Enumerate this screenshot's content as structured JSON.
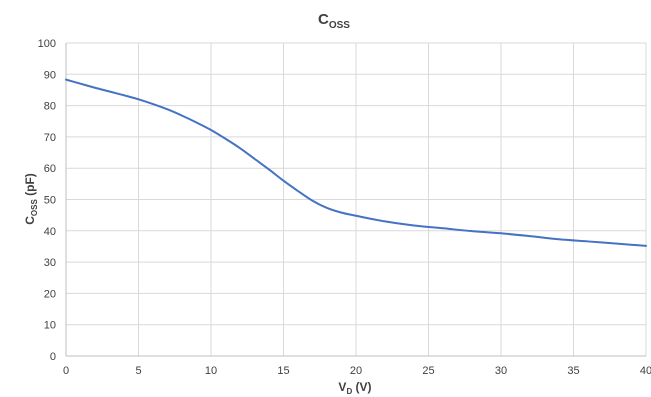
{
  "chart_data": {
    "type": "line",
    "title": {
      "main": "C",
      "sub": "OSS"
    },
    "xlabel": {
      "main": "V",
      "sub": "D",
      "suffix": " (V)"
    },
    "ylabel": {
      "main": "C",
      "sub": "OSS",
      "suffix": " (pF)"
    },
    "xlim": [
      0,
      40
    ],
    "ylim": [
      0,
      100
    ],
    "x_ticks": [
      "0",
      "5",
      "10",
      "15",
      "20",
      "25",
      "30",
      "35",
      "40"
    ],
    "y_ticks": [
      "0",
      "10",
      "20",
      "30",
      "40",
      "50",
      "60",
      "70",
      "80",
      "90",
      "100"
    ],
    "grid": true,
    "legend": "none",
    "line_color": "#4472c4",
    "series": [
      {
        "x": [
          0,
          1,
          2,
          3,
          4,
          5,
          6,
          7,
          8,
          9,
          10,
          11,
          12,
          13,
          14,
          15,
          16,
          17,
          18,
          19,
          20,
          22,
          24,
          26,
          28,
          30,
          32,
          34,
          36,
          38,
          40
        ],
        "y": [
          88.3,
          87.0,
          85.7,
          84.5,
          83.3,
          82.0,
          80.5,
          78.8,
          76.8,
          74.6,
          72.2,
          69.4,
          66.4,
          63.0,
          59.6,
          56.0,
          52.7,
          49.6,
          47.3,
          45.8,
          44.8,
          43.0,
          41.7,
          40.8,
          39.9,
          39.2,
          38.3,
          37.3,
          36.6,
          35.9,
          35.2
        ]
      }
    ]
  }
}
